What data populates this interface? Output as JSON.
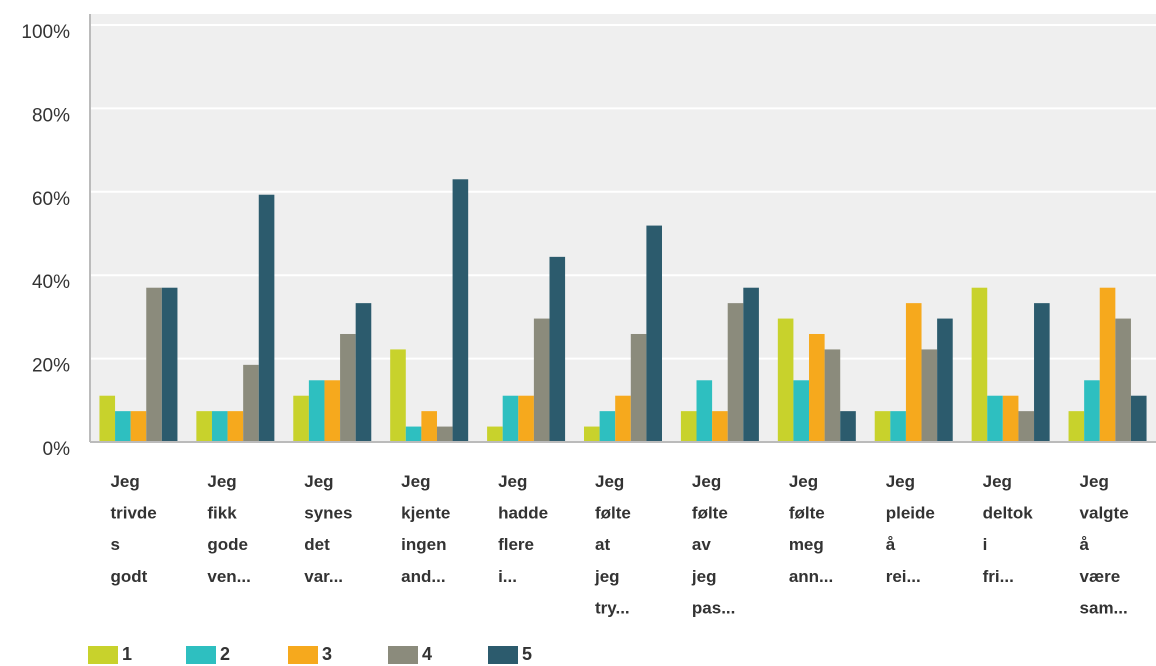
{
  "chart_data": {
    "type": "bar",
    "categories": [
      "Jeg trivdes godt",
      "Jeg fikk gode ven...",
      "Jeg synes det var...",
      "Jeg kjente ingen and...",
      "Jeg hadde flere i...",
      "Jeg følte at jeg try...",
      "Jeg følte av jeg pas...",
      "Jeg følte meg ann...",
      "Jeg pleide å rei...",
      "Jeg deltok i fri...",
      "Jeg valgte å være sam..."
    ],
    "series": [
      {
        "name": "1",
        "color": "#c8d22c",
        "values": [
          11.1,
          7.4,
          11.1,
          22.2,
          3.7,
          3.7,
          7.4,
          29.6,
          7.4,
          37.0,
          7.4
        ]
      },
      {
        "name": "2",
        "color": "#2ebfc0",
        "values": [
          7.4,
          7.4,
          14.8,
          3.7,
          11.1,
          7.4,
          14.8,
          14.8,
          7.4,
          11.1,
          14.8
        ]
      },
      {
        "name": "3",
        "color": "#f6a91d",
        "values": [
          7.4,
          7.4,
          14.8,
          7.4,
          11.1,
          11.1,
          7.4,
          25.9,
          33.3,
          11.1,
          37.0
        ]
      },
      {
        "name": "4",
        "color": "#8b8b7c",
        "values": [
          37.0,
          18.5,
          25.9,
          3.7,
          29.6,
          25.9,
          33.3,
          22.2,
          22.2,
          7.4,
          29.6
        ]
      },
      {
        "name": "5",
        "color": "#2c5b6d",
        "values": [
          37.0,
          59.3,
          33.3,
          63.0,
          44.4,
          51.9,
          37.0,
          7.4,
          29.6,
          33.3,
          11.1
        ]
      }
    ],
    "ylim": [
      0,
      100
    ],
    "yticks": [
      {
        "value": 0,
        "label": "0%"
      },
      {
        "value": 20,
        "label": "20%"
      },
      {
        "value": 40,
        "label": "40%"
      },
      {
        "value": 60,
        "label": "60%"
      },
      {
        "value": 80,
        "label": "80%"
      },
      {
        "value": 100,
        "label": "100%"
      }
    ],
    "grid": true,
    "legend": "bottom-left"
  }
}
